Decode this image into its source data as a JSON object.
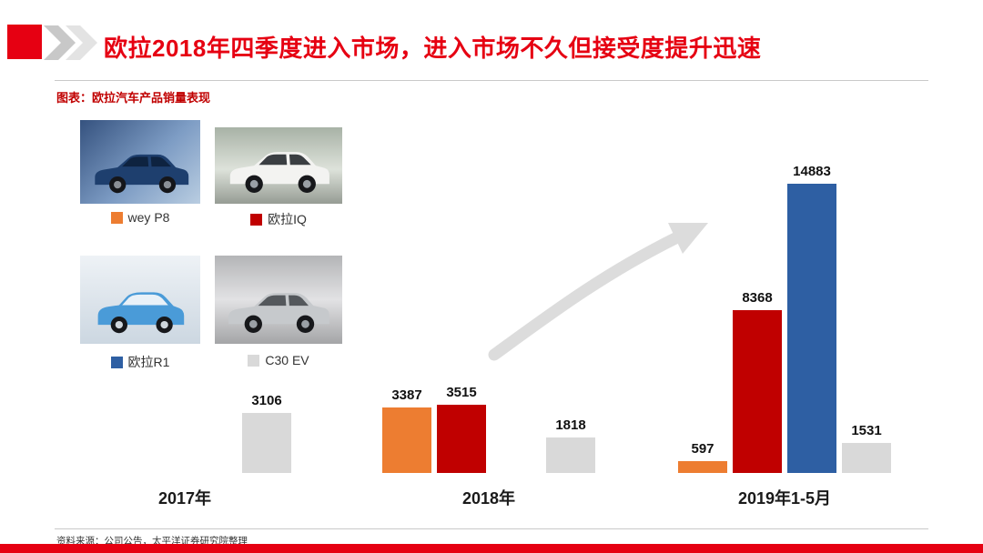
{
  "header": {
    "title": "欧拉2018年四季度进入市场，进入市场不久但接受度提升迅速"
  },
  "caption": "图表：欧拉汽车产品销量表现",
  "chart_data": {
    "type": "bar",
    "title": "欧拉汽车产品销量表现",
    "categories": [
      "2017年",
      "2018年",
      "2019年1-5月"
    ],
    "series": [
      {
        "name": "wey P8",
        "color": "#ED7D31",
        "values": [
          null,
          3387,
          597
        ]
      },
      {
        "name": "欧拉IQ",
        "color": "#C00000",
        "values": [
          null,
          3515,
          8368
        ]
      },
      {
        "name": "欧拉R1",
        "color": "#2E5FA3",
        "values": [
          null,
          null,
          14883
        ]
      },
      {
        "name": "C30 EV",
        "color": "#D9D9D9",
        "values": [
          3106,
          1818,
          1531
        ]
      }
    ],
    "xlabel": "",
    "ylabel": "",
    "ylim": [
      0,
      15000
    ],
    "grid": false,
    "data_labels": true,
    "legend_position": "left-with-car-photos",
    "annotations": [
      "upward-trend-arrow"
    ]
  },
  "footer": {
    "source": "资料来源：公司公告，太平洋证券研究院整理"
  },
  "colors": {
    "accent_red": "#E60012",
    "caption_red": "#C00000",
    "bar_orange": "#ED7D31",
    "bar_dark_red": "#C00000",
    "bar_blue": "#2E5FA3",
    "bar_gray": "#D9D9D9",
    "arrow_gray": "#DCDCDC"
  }
}
